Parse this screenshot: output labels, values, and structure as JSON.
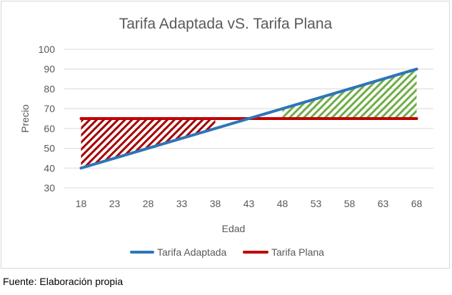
{
  "chart_data": {
    "type": "line",
    "title": "Tarifa Adaptada vS. Tarifa Plana",
    "xlabel": "Edad",
    "ylabel": "Precio",
    "x": [
      18,
      23,
      28,
      33,
      38,
      43,
      48,
      53,
      58,
      63,
      68
    ],
    "x_tick_labels": [
      "18",
      "23",
      "28",
      "33",
      "38",
      "43",
      "48",
      "53",
      "58",
      "63",
      "68"
    ],
    "ylim": [
      30,
      100
    ],
    "y_ticks": [
      30,
      40,
      50,
      60,
      70,
      80,
      90,
      100
    ],
    "y_tick_labels": [
      "30",
      "40",
      "50",
      "60",
      "70",
      "80",
      "90",
      "100"
    ],
    "grid": true,
    "legend_position": "bottom",
    "series": [
      {
        "name": "Tarifa Adaptada",
        "color": "#2e75b6",
        "values": [
          40,
          45,
          50,
          55,
          60,
          65,
          70,
          75,
          80,
          85,
          90
        ]
      },
      {
        "name": "Tarifa Plana",
        "color": "#c00000",
        "values": [
          65,
          65,
          65,
          65,
          65,
          65,
          65,
          65,
          65,
          65,
          65
        ]
      }
    ],
    "shaded_regions": [
      {
        "color": "#a50000",
        "pattern": "diagonal-hatch",
        "x_from": 18,
        "x_to": 38
      },
      {
        "color": "#70ad47",
        "pattern": "diagonal-hatch",
        "x_from": 48,
        "x_to": 68
      }
    ]
  },
  "footer": {
    "source": "Fuente: Elaboración propia"
  }
}
